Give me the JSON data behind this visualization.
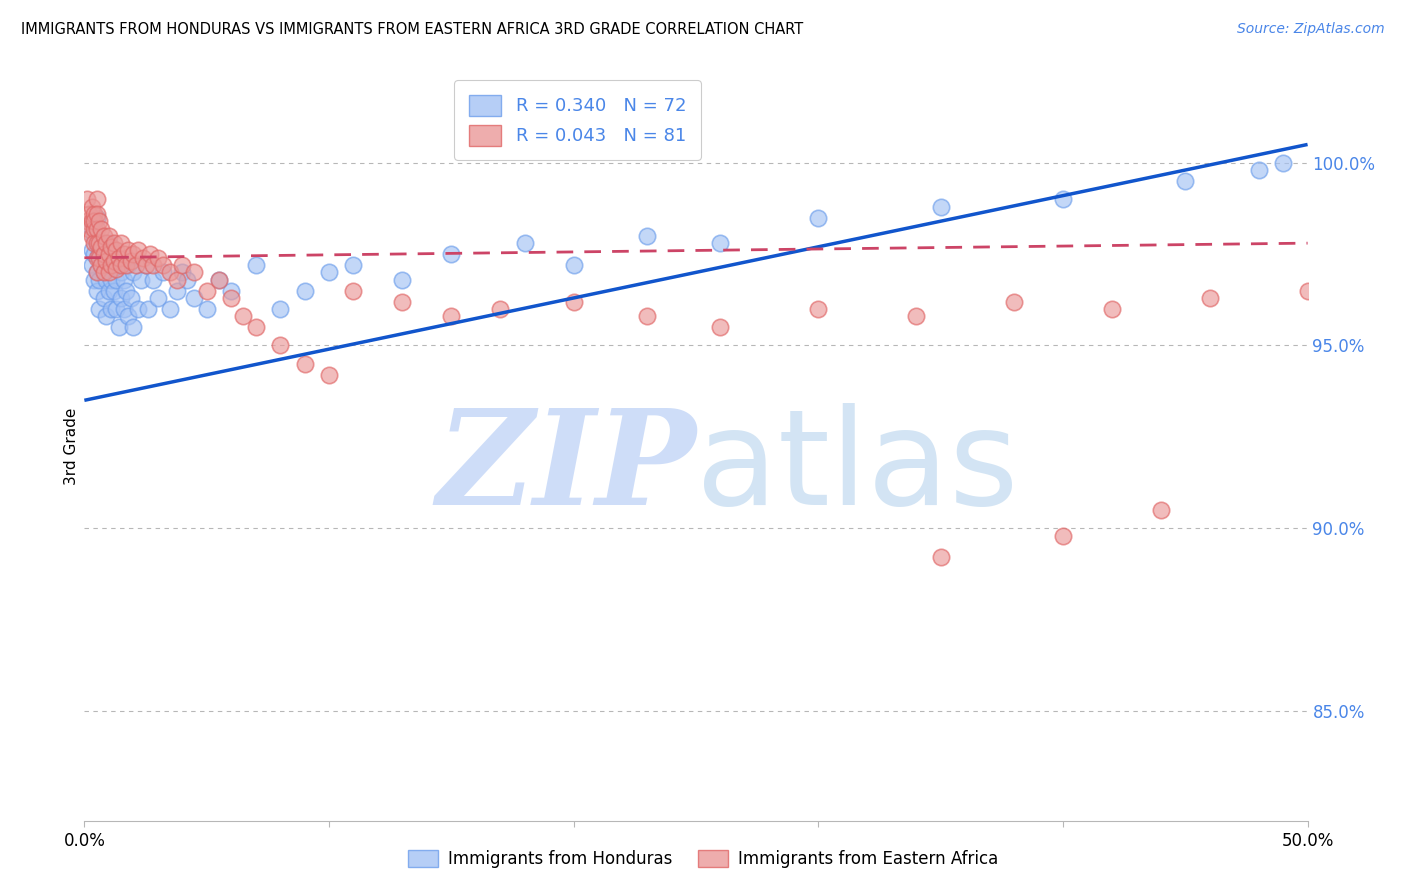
{
  "title": "IMMIGRANTS FROM HONDURAS VS IMMIGRANTS FROM EASTERN AFRICA 3RD GRADE CORRELATION CHART",
  "source": "Source: ZipAtlas.com",
  "ylabel": "3rd Grade",
  "legend_blue_r": "0.340",
  "legend_blue_n": "72",
  "legend_pink_r": "0.043",
  "legend_pink_n": "81",
  "blue_color": "#a4c2f4",
  "blue_edge_color": "#6d9eeb",
  "pink_color": "#ea9999",
  "pink_edge_color": "#e06666",
  "blue_line_color": "#1155cc",
  "pink_line_color": "#cc4466",
  "background_color": "#ffffff",
  "grid_color": "#b7b7b7",
  "title_color": "#000000",
  "source_color": "#4a86e8",
  "right_tick_color": "#4a86e8",
  "watermark_zip_color": "#c9daf8",
  "watermark_atlas_color": "#cfe2f3",
  "xlim": [
    0.0,
    0.5
  ],
  "ylim": [
    0.82,
    1.025
  ],
  "yticks": [
    0.85,
    0.9,
    0.95,
    1.0
  ],
  "ytick_labels": [
    "85.0%",
    "90.0%",
    "95.0%",
    "100.0%"
  ],
  "blue_line_x": [
    0.0,
    0.5
  ],
  "blue_line_y": [
    0.935,
    1.005
  ],
  "pink_line_x": [
    0.0,
    0.5
  ],
  "pink_line_y": [
    0.974,
    0.978
  ],
  "blue_x": [
    0.002,
    0.003,
    0.003,
    0.004,
    0.004,
    0.004,
    0.005,
    0.005,
    0.005,
    0.005,
    0.006,
    0.006,
    0.006,
    0.007,
    0.007,
    0.008,
    0.008,
    0.008,
    0.009,
    0.009,
    0.01,
    0.01,
    0.01,
    0.011,
    0.011,
    0.012,
    0.012,
    0.013,
    0.013,
    0.014,
    0.015,
    0.015,
    0.016,
    0.016,
    0.017,
    0.018,
    0.018,
    0.019,
    0.02,
    0.02,
    0.022,
    0.023,
    0.025,
    0.026,
    0.028,
    0.03,
    0.032,
    0.035,
    0.038,
    0.04,
    0.042,
    0.045,
    0.05,
    0.055,
    0.06,
    0.07,
    0.08,
    0.09,
    0.1,
    0.11,
    0.13,
    0.15,
    0.18,
    0.2,
    0.23,
    0.26,
    0.3,
    0.35,
    0.4,
    0.45,
    0.48,
    0.49
  ],
  "blue_y": [
    0.983,
    0.972,
    0.976,
    0.968,
    0.975,
    0.98,
    0.97,
    0.965,
    0.985,
    0.978,
    0.975,
    0.968,
    0.96,
    0.972,
    0.978,
    0.97,
    0.963,
    0.975,
    0.968,
    0.958,
    0.972,
    0.965,
    0.978,
    0.96,
    0.968,
    0.972,
    0.965,
    0.968,
    0.96,
    0.955,
    0.97,
    0.963,
    0.968,
    0.96,
    0.965,
    0.972,
    0.958,
    0.963,
    0.97,
    0.955,
    0.96,
    0.968,
    0.972,
    0.96,
    0.968,
    0.963,
    0.97,
    0.96,
    0.965,
    0.97,
    0.968,
    0.963,
    0.96,
    0.968,
    0.965,
    0.972,
    0.96,
    0.965,
    0.97,
    0.972,
    0.968,
    0.975,
    0.978,
    0.972,
    0.98,
    0.978,
    0.985,
    0.988,
    0.99,
    0.995,
    0.998,
    1.0
  ],
  "pink_x": [
    0.001,
    0.001,
    0.002,
    0.002,
    0.003,
    0.003,
    0.003,
    0.004,
    0.004,
    0.004,
    0.004,
    0.005,
    0.005,
    0.005,
    0.005,
    0.005,
    0.005,
    0.006,
    0.006,
    0.006,
    0.007,
    0.007,
    0.007,
    0.008,
    0.008,
    0.008,
    0.009,
    0.009,
    0.01,
    0.01,
    0.01,
    0.011,
    0.011,
    0.012,
    0.012,
    0.013,
    0.013,
    0.014,
    0.015,
    0.015,
    0.016,
    0.017,
    0.018,
    0.019,
    0.02,
    0.021,
    0.022,
    0.024,
    0.025,
    0.027,
    0.028,
    0.03,
    0.032,
    0.035,
    0.038,
    0.04,
    0.045,
    0.05,
    0.055,
    0.06,
    0.065,
    0.07,
    0.08,
    0.09,
    0.1,
    0.11,
    0.13,
    0.15,
    0.17,
    0.2,
    0.23,
    0.26,
    0.3,
    0.34,
    0.38,
    0.42,
    0.46,
    0.5,
    0.35,
    0.4,
    0.44
  ],
  "pink_y": [
    0.99,
    0.984,
    0.986,
    0.982,
    0.988,
    0.984,
    0.98,
    0.986,
    0.982,
    0.978,
    0.984,
    0.99,
    0.986,
    0.982,
    0.978,
    0.974,
    0.97,
    0.984,
    0.978,
    0.974,
    0.982,
    0.977,
    0.972,
    0.98,
    0.975,
    0.97,
    0.978,
    0.973,
    0.98,
    0.975,
    0.97,
    0.977,
    0.972,
    0.978,
    0.973,
    0.976,
    0.971,
    0.974,
    0.978,
    0.972,
    0.975,
    0.972,
    0.976,
    0.973,
    0.975,
    0.972,
    0.976,
    0.974,
    0.972,
    0.975,
    0.972,
    0.974,
    0.972,
    0.97,
    0.968,
    0.972,
    0.97,
    0.965,
    0.968,
    0.963,
    0.958,
    0.955,
    0.95,
    0.945,
    0.942,
    0.965,
    0.962,
    0.958,
    0.96,
    0.962,
    0.958,
    0.955,
    0.96,
    0.958,
    0.962,
    0.96,
    0.963,
    0.965,
    0.892,
    0.898,
    0.905
  ]
}
